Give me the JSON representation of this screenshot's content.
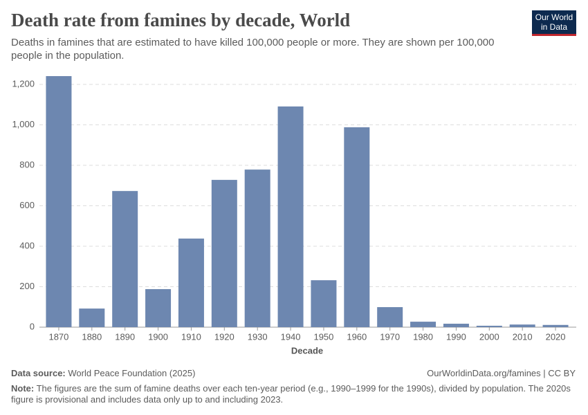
{
  "chart_data": {
    "type": "bar",
    "title": "Death rate from famines by decade, World",
    "subtitle": "Deaths in famines that are estimated to have killed 100,000 people or more. They are shown per 100,000 people in the population.",
    "logo": [
      "Our World",
      "in Data"
    ],
    "x_label": "Decade",
    "categories": [
      "1870",
      "1880",
      "1890",
      "1900",
      "1910",
      "1920",
      "1930",
      "1940",
      "1950",
      "1960",
      "1970",
      "1980",
      "1990",
      "2000",
      "2010",
      "2020"
    ],
    "values": [
      1241,
      92,
      673,
      188,
      438,
      728,
      779,
      1091,
      232,
      988,
      99,
      27,
      17,
      7,
      13,
      11
    ],
    "color": "#6d87b0",
    "ylim": [
      0,
      1250
    ],
    "yticks": [
      0,
      200,
      400,
      600,
      800,
      {
        "value": 1000,
        "label": "1,000"
      },
      {
        "value": 1200,
        "label": "1,200"
      }
    ],
    "grid": true,
    "source_label": "Data source:",
    "source": "World Peace Foundation (2025)",
    "url": "OurWorldinData.org/famines | CC BY",
    "note_label": "Note:",
    "note": "The figures are the sum of famine deaths over each ten-year period (e.g., 1990–1999 for the 1990s), divided by population. The 2020s figure is provisional and includes data only up to and including 2023."
  }
}
